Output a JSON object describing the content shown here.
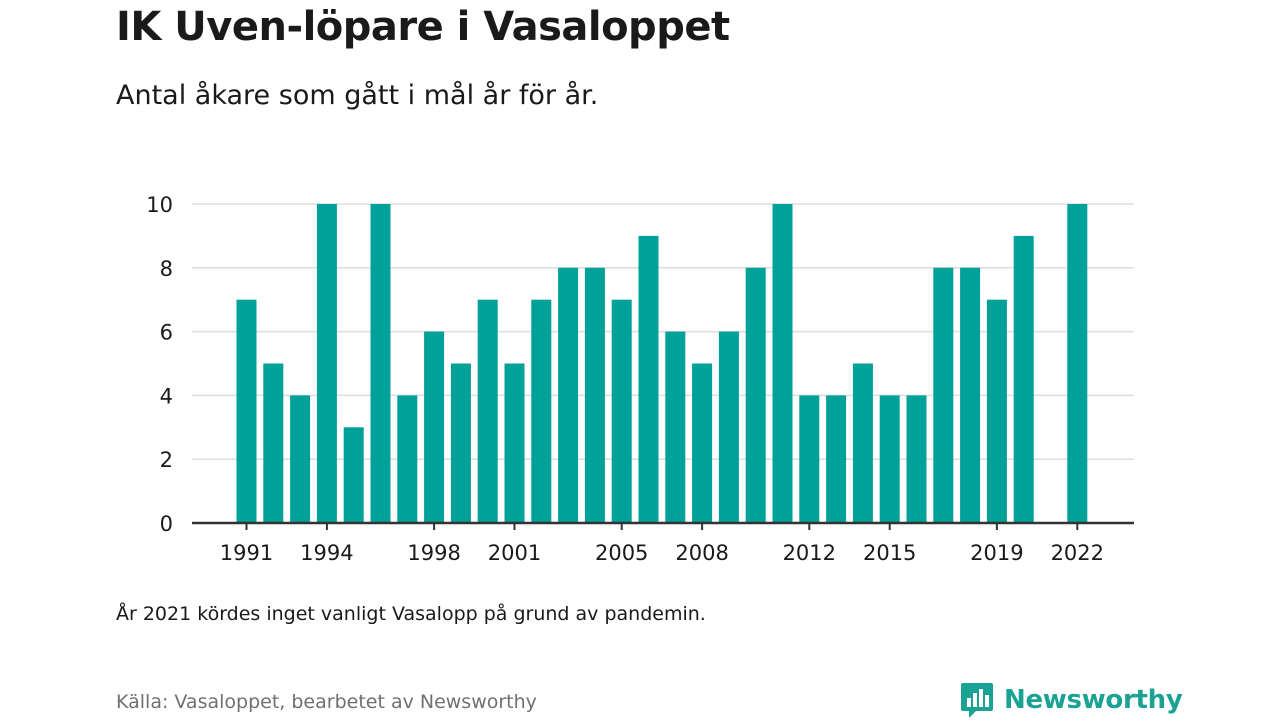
{
  "title": "IK Uven-löpare i Vasaloppet",
  "subtitle": "Antal åkare som gått i mål år för år.",
  "note": "År 2021 kördes inget vanligt Vasalopp på grund av pandemin.",
  "source": "Källa: Vasaloppet, bearbetet av Newsworthy",
  "logo": {
    "text": "Newsworthy",
    "icon": "newsworthy-bar-chart-logo-icon",
    "color": "#1aa295"
  },
  "colors": {
    "bar": "#00a199",
    "grid": "#dddddd",
    "axis": "#333333"
  },
  "chart_data": {
    "type": "bar",
    "title": "IK Uven-löpare i Vasaloppet",
    "subtitle": "Antal åkare som gått i mål år för år.",
    "xlabel": "",
    "ylabel": "",
    "x": [
      1991,
      1992,
      1993,
      1994,
      1995,
      1996,
      1997,
      1998,
      1999,
      2000,
      2001,
      2002,
      2003,
      2004,
      2005,
      2006,
      2007,
      2008,
      2009,
      2010,
      2011,
      2012,
      2013,
      2014,
      2015,
      2016,
      2017,
      2018,
      2019,
      2020,
      2021,
      2022
    ],
    "values": [
      7,
      5,
      4,
      10,
      3,
      10,
      4,
      6,
      5,
      7,
      5,
      7,
      8,
      8,
      7,
      9,
      6,
      5,
      6,
      8,
      10,
      4,
      4,
      5,
      4,
      4,
      8,
      8,
      7,
      9,
      null,
      10
    ],
    "x_tick_labels": [
      "1991",
      "1994",
      "1998",
      "2001",
      "2005",
      "2008",
      "2012",
      "2015",
      "2019",
      "2022"
    ],
    "y_ticks": [
      0,
      2,
      4,
      6,
      8,
      10
    ],
    "ylim": [
      0,
      10
    ],
    "grid": true
  }
}
